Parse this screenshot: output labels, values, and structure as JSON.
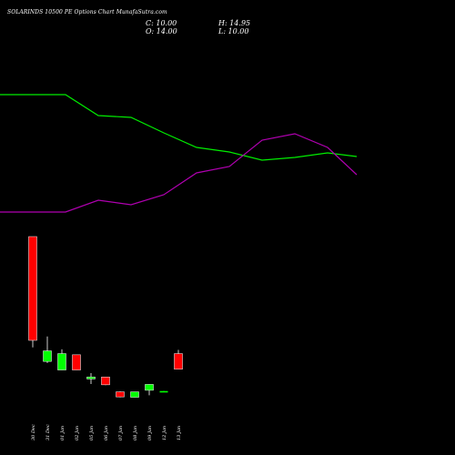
{
  "header": {
    "title": "SOLARINDS 10500 PE Options Chart MunafaSutra.com",
    "close": "C: 10.00",
    "open": "O: 14.00",
    "high": "H: 14.95",
    "low": "L: 10.00"
  },
  "chart_data": {
    "type": "candlestick",
    "grid": false,
    "background": "#000000",
    "colors": {
      "up": "#00ff00",
      "down": "#ff0000",
      "line_green": "#00ee00",
      "line_magenta": "#b000b0",
      "doji": "#00ff00"
    },
    "categories": [
      "30 Dec",
      "31 Dec",
      "01 Jan",
      "02 Jan",
      "05 Jan",
      "06 Jan",
      "07 Jan",
      "08 Jan",
      "09 Jan",
      "12 Jan",
      "13 Jan"
    ],
    "candles": [
      {
        "date": "30 Dec",
        "open": 44.0,
        "high": 44.0,
        "low": 15.6,
        "close": 17.4
      },
      {
        "date": "31 Dec",
        "open": 12.0,
        "high": 18.4,
        "low": 11.6,
        "close": 14.7
      },
      {
        "date": "01 Jan",
        "open": 9.8,
        "high": 15.1,
        "low": 9.8,
        "close": 14.0
      },
      {
        "date": "02 Jan",
        "open": 13.7,
        "high": 13.7,
        "low": 9.8,
        "close": 9.8
      },
      {
        "date": "05 Jan",
        "open": 7.5,
        "high": 9.0,
        "low": 6.2,
        "close": 8.0
      },
      {
        "date": "06 Jan",
        "open": 8.0,
        "high": 8.0,
        "low": 5.9,
        "close": 6.0
      },
      {
        "date": "07 Jan",
        "open": 4.2,
        "high": 4.3,
        "low": 2.8,
        "close": 2.9
      },
      {
        "date": "08 Jan",
        "open": 2.8,
        "high": 4.2,
        "low": 2.8,
        "close": 4.2
      },
      {
        "date": "09 Jan",
        "open": 4.6,
        "high": 6.1,
        "low": 3.3,
        "close": 6.1
      },
      {
        "date": "12 Jan",
        "open": 4.4,
        "high": 4.4,
        "low": 4.3,
        "close": 4.3
      },
      {
        "date": "13 Jan",
        "open": 14.0,
        "high": 14.95,
        "low": 10.0,
        "close": 10.0
      }
    ],
    "lines": [
      {
        "color": "#00ee00",
        "x": [
          "30 Dec",
          "31 Dec",
          "01 Jan",
          "02 Jan",
          "05 Jan",
          "06 Jan",
          "07 Jan",
          "08 Jan",
          "09 Jan",
          "12 Jan",
          "13 Jan"
        ],
        "values": [
          104,
          104,
          127,
          129,
          146,
          162,
          167,
          176,
          173,
          168,
          172
        ]
      },
      {
        "color": "#b000b0",
        "x": [
          "30 Dec",
          "31 Dec",
          "01 Jan",
          "02 Jan",
          "05 Jan",
          "06 Jan",
          "07 Jan",
          "08 Jan",
          "09 Jan",
          "12 Jan",
          "13 Jan"
        ],
        "values": [
          233,
          233,
          220,
          225,
          214,
          190,
          183,
          154,
          147,
          162,
          192
        ]
      }
    ]
  }
}
